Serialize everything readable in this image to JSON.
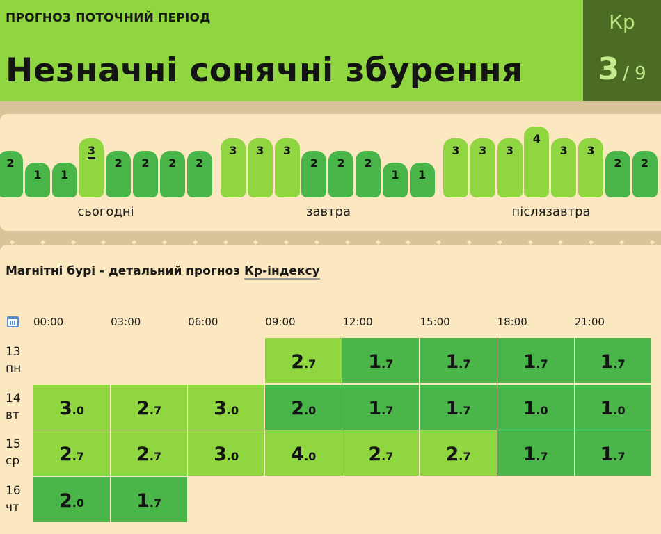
{
  "header": {
    "subtitle": "ПРОГНОЗ ПОТОЧНИЙ ПЕРІОД",
    "title": "Незначні сонячні збурення",
    "kp_label": "Кр",
    "kp_current": "3",
    "kp_max": "/ 9"
  },
  "strip": {
    "days": [
      {
        "label": "сьогодні",
        "values": [
          "2",
          "1",
          "1",
          "3",
          "2",
          "2",
          "2",
          "2"
        ]
      },
      {
        "label": "завтра",
        "values": [
          "3",
          "3",
          "3",
          "2",
          "2",
          "2",
          "1",
          "1"
        ]
      },
      {
        "label": "післязавтра",
        "values": [
          "3",
          "3",
          "3",
          "4",
          "3",
          "3",
          "2",
          "2"
        ]
      }
    ],
    "current_index": 3
  },
  "detail": {
    "title_prefix": "Магнітні бурі - детальний прогноз ",
    "title_link": "Кр-індексу",
    "times": [
      "00:00",
      "03:00",
      "06:00",
      "09:00",
      "12:00",
      "15:00",
      "18:00",
      "21:00"
    ],
    "rows": [
      {
        "day": "13",
        "weekday": "пн",
        "values": [
          null,
          null,
          null,
          [
            "2",
            ".7"
          ],
          [
            "1",
            ".7"
          ],
          [
            "1",
            ".7"
          ],
          [
            "1",
            ".7"
          ],
          [
            "1",
            ".7"
          ]
        ]
      },
      {
        "day": "14",
        "weekday": "вт",
        "values": [
          [
            "3",
            ".0"
          ],
          [
            "2",
            ".7"
          ],
          [
            "3",
            ".0"
          ],
          [
            "2",
            ".0"
          ],
          [
            "1",
            ".7"
          ],
          [
            "1",
            ".7"
          ],
          [
            "1",
            ".0"
          ],
          [
            "1",
            ".0"
          ]
        ]
      },
      {
        "day": "15",
        "weekday": "ср",
        "values": [
          [
            "2",
            ".7"
          ],
          [
            "2",
            ".7"
          ],
          [
            "3",
            ".0"
          ],
          [
            "4",
            ".0"
          ],
          [
            "2",
            ".7"
          ],
          [
            "2",
            ".7"
          ],
          [
            "1",
            ".7"
          ],
          [
            "1",
            ".7"
          ]
        ]
      },
      {
        "day": "16",
        "weekday": "чт",
        "values": [
          [
            "2",
            ".0"
          ],
          [
            "1",
            ".7"
          ],
          null,
          null,
          null,
          null,
          null,
          null
        ]
      }
    ]
  },
  "colors": {
    "header_green": "#8fd640",
    "kp_box": "#4b6b22",
    "low_green": "#4ab548",
    "mid_green": "#8fd640",
    "panel": "#fbe8c0",
    "background": "#d8c49a"
  }
}
